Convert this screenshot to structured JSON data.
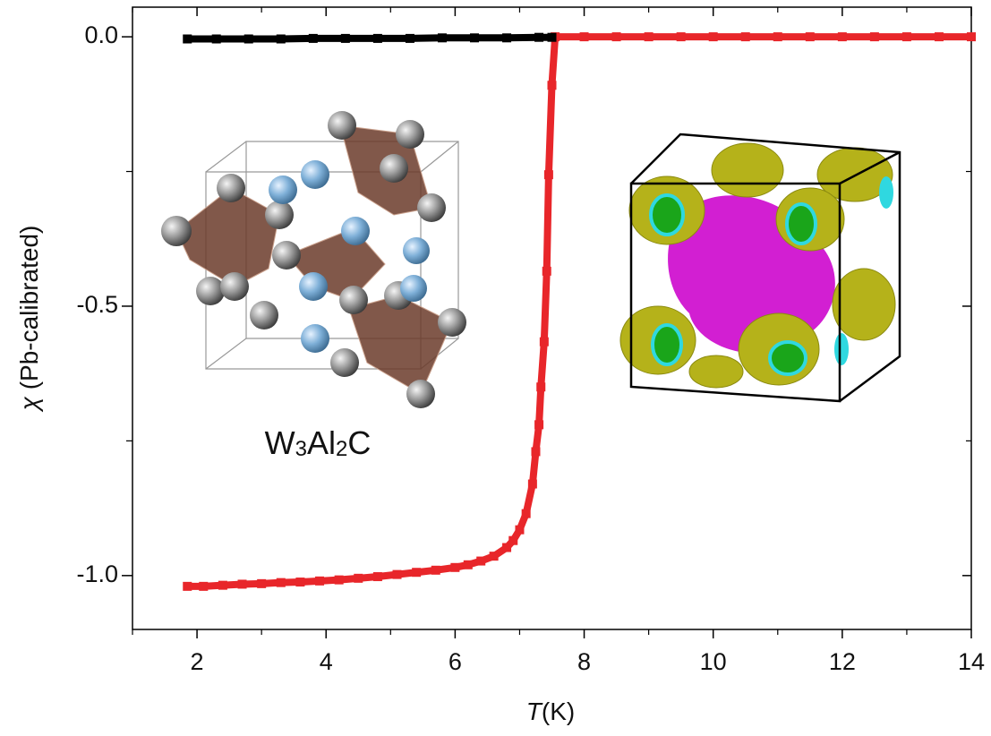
{
  "chart_data": {
    "type": "scatter",
    "xlabel_symbol": "T",
    "xlabel_unit": "(K)",
    "ylabel_symbol": "χ",
    "ylabel_text": "(Pb-calibrated)",
    "annotation_parts": [
      "W",
      "3",
      "Al",
      "2",
      "C"
    ],
    "xlim": [
      1,
      14
    ],
    "ylim": [
      -1.1,
      0.055
    ],
    "xticks": [
      2,
      4,
      6,
      8,
      10,
      12,
      14
    ],
    "xminorticks": [
      1,
      3,
      5,
      7,
      9,
      11,
      13
    ],
    "yticks": [
      {
        "value": 0,
        "label": "0.0"
      },
      {
        "value": -0.5,
        "label": "-0.5"
      },
      {
        "value": -1,
        "label": "-1.0"
      }
    ],
    "yminorticks": [
      -0.25,
      -0.75
    ],
    "series": [
      {
        "color": "#e8262a",
        "x": [
          1.85,
          2.1,
          2.4,
          2.7,
          3.0,
          3.3,
          3.6,
          3.9,
          4.2,
          4.5,
          4.8,
          5.1,
          5.4,
          5.7,
          6.0,
          6.2,
          6.4,
          6.6,
          6.8,
          6.9,
          7.0,
          7.1,
          7.2,
          7.25,
          7.3,
          7.33,
          7.38,
          7.42,
          7.45,
          7.5,
          7.55,
          8,
          8.5,
          9,
          9.5,
          10,
          10.5,
          11,
          11.5,
          12,
          12.5,
          13,
          13.5,
          14
        ],
        "values": [
          -1.02,
          -1.02,
          -1.018,
          -1.016,
          -1.015,
          -1.013,
          -1.012,
          -1.01,
          -1.008,
          -1.005,
          -1.002,
          -0.998,
          -0.994,
          -0.99,
          -0.985,
          -0.98,
          -0.973,
          -0.964,
          -0.948,
          -0.935,
          -0.915,
          -0.885,
          -0.83,
          -0.77,
          -0.72,
          -0.65,
          -0.566,
          -0.435,
          -0.256,
          -0.09,
          0,
          0,
          0,
          0,
          0,
          0,
          0,
          0,
          0,
          0,
          0,
          0,
          0,
          0
        ]
      },
      {
        "color": "#000000",
        "x": [
          1.85,
          2.3,
          2.8,
          3.3,
          3.8,
          4.3,
          4.8,
          5.3,
          5.8,
          6.3,
          6.8,
          7.3,
          7.5
        ],
        "values": [
          -0.004,
          -0.004,
          -0.004,
          -0.004,
          -0.003,
          -0.003,
          -0.003,
          -0.003,
          -0.002,
          -0.002,
          -0.002,
          -0.001,
          -0.001
        ]
      }
    ]
  }
}
